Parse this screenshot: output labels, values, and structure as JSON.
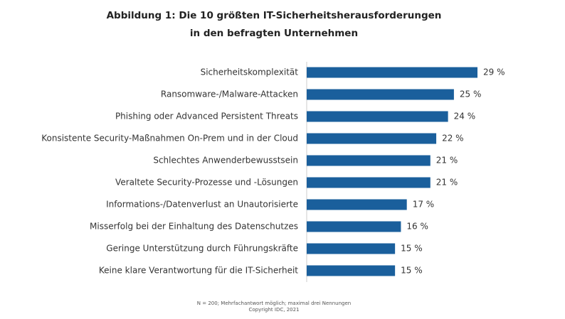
{
  "chart_data": {
    "type": "bar",
    "orientation": "horizontal",
    "title": [
      "Abbildung 1: Die 10 größten IT-Sicherheitsherausforderungen",
      "in den befragten Unternehmen"
    ],
    "categories": [
      "Sicherheitskomplexität",
      "Ransomware-/Malware-Attacken",
      "Phishing oder Advanced Persistent Threats",
      "Konsistente Security-Maßnahmen On-Prem und in der Cloud",
      "Schlechtes Anwenderbewusstsein",
      "Veraltete Security-Prozesse und -Lösungen",
      "Informations-/Datenverlust an Unautorisierte",
      "Misserfolg bei der Einhaltung des Datenschutzes",
      "Geringe Unterstützung durch Führungskräfte",
      "Keine klare Verantwortung für die IT-Sicherheit"
    ],
    "values": [
      29,
      25,
      24,
      22,
      21,
      21,
      17,
      16,
      15,
      15
    ],
    "value_labels": [
      "29 %",
      "25 %",
      "24 %",
      "22 %",
      "21 %",
      "21 %",
      "17 %",
      "16 %",
      "15 %",
      "15 %"
    ],
    "color": "#1a5f9c",
    "footnote": [
      "N = 200; Mehrfachantwort möglich; maximal drei Nennungen",
      "Copyright IDC, 2021"
    ]
  }
}
